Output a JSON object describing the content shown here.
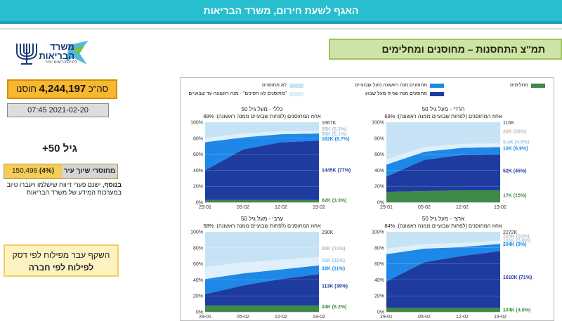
{
  "header": {
    "title": "האגף לשעת חירום, משרד הבריאות"
  },
  "logo": {
    "line1": "משרד",
    "line2": "הבריאות",
    "tagline": "לחיים בריאים יותר"
  },
  "sidebar": {
    "total_prefix": "סה\"כ",
    "total_value": "4,244,197",
    "total_suffix": "חוסנו",
    "datetime": "07:45 2021-02-20",
    "age_group": "גיל 50+",
    "unvaccinated_label": "מחוסרי שיוך עיר",
    "unvaccinated_value": "150,496",
    "unvaccinated_pct": "(4%)",
    "note_bold": "בנוסף,",
    "note_text": " ישנם פערי דיווח שישלמו ויעברו טיוב במערכות המידע של משרד הבריאות",
    "transition_line1": "השקף עבר מפילוח לפי דסק",
    "transition_line2": "לפילוח לפי חברה"
  },
  "section": {
    "title": "תמ\"צ התחסנות – מחוסנים ומחלימים"
  },
  "colors": {
    "dose2": "#1e3c9f",
    "dose1": "#1e88e8",
    "not_vaccinated": "#c6e3f5",
    "dose1_under_week": "#dfeffb",
    "recovered": "#3d8b46"
  },
  "legend": {
    "recovered": "מחלימים",
    "dose1": "מחוסנים מנה ראשונה מעל שבועיים",
    "not_vaccinated": "לא מחוסנים",
    "dose2": "מחוסנים מנה שנייה מעל שבוע",
    "dose1_recent": "\"מחוסנים לא חסינים\" - מנה ראשונה עד שבועיים"
  },
  "chart_data": [
    {
      "type": "area",
      "title": "חרדי - מעל גיל 50",
      "subtitle": "אחוז המחוסנים (לפחות שבועיים ממנה ראשונה): 69%",
      "x": [
        "29-01",
        "05-02",
        "12-02",
        "19-02"
      ],
      "ylim": [
        0,
        100
      ],
      "yticks": [
        "0%",
        "20%",
        "40%",
        "60%",
        "80%",
        "100%"
      ],
      "series": [
        {
          "name": "מחלימים",
          "values": [
            13,
            14,
            15,
            15
          ]
        },
        {
          "name": "מחוסנים מנה שנייה מעל שבוע",
          "values": [
            19,
            39,
            44,
            45
          ]
        },
        {
          "name": "מחוסנים מנה ראשונה מעל שבועיים",
          "values": [
            15,
            10,
            9,
            9
          ]
        },
        {
          "name": "\"מחוסנים לא חסינים\" - מנה ראשונה עד שבועיים",
          "values": [
            7,
            6,
            5,
            5
          ]
        }
      ],
      "labels": [
        {
          "text": "116K",
          "y": 100
        },
        {
          "text": "20K (28%)",
          "y": 89
        },
        {
          "text": "5.4K (4.5%)",
          "y": 76
        },
        {
          "text": "10K (8.9%)",
          "y": 68
        },
        {
          "text": "52K (45%)",
          "y": 40
        },
        {
          "text": "17K (15%)",
          "y": 9
        }
      ]
    },
    {
      "type": "area",
      "title": "כללי - מעל גיל 50",
      "subtitle": "אחוז המחוסנים (לפחות שבועיים ממנה ראשונה): 89%",
      "x": [
        "29-01",
        "05-02",
        "12-02",
        "19-02"
      ],
      "ylim": [
        0,
        100
      ],
      "yticks": [
        "0%",
        "20%",
        "40%",
        "60%",
        "80%",
        "100%"
      ],
      "series": [
        {
          "name": "מחלימים",
          "values": [
            3,
            3,
            3,
            3
          ]
        },
        {
          "name": "מחוסנים מנה שנייה מעל שבוע",
          "values": [
            37,
            63,
            72,
            74
          ]
        },
        {
          "name": "מחוסנים מנה ראשונה מעל שבועיים",
          "values": [
            35,
            15,
            10,
            9
          ]
        },
        {
          "name": "\"מחוסנים לא חסינים\" - מנה ראשונה עד שבועיים",
          "values": [
            5,
            5,
            4,
            3
          ]
        }
      ],
      "labels": [
        {
          "text": "1867K",
          "y": 100
        },
        {
          "text": "95K (5.3%)",
          "y": 92
        },
        {
          "text": "95K (5.1%)",
          "y": 86
        },
        {
          "text": "162K (8.7%)",
          "y": 80
        },
        {
          "text": "1445K (77%)",
          "y": 41
        },
        {
          "text": "62K (3.3%)",
          "y": 3
        }
      ]
    },
    {
      "type": "area",
      "title": "ארצי - מעל גיל 50",
      "subtitle": "אחוז המחוסנים (לפחות שבועיים ממנה ראשונה): 84%",
      "x": [
        "29-01",
        "05-02",
        "12-02",
        "19-02"
      ],
      "ylim": [
        0,
        100
      ],
      "yticks": [
        "0%",
        "20%",
        "40%",
        "60%",
        "80%",
        "100%"
      ],
      "series": [
        {
          "name": "מחלימים",
          "values": [
            5,
            5,
            5,
            5
          ]
        },
        {
          "name": "מחוסנים מנה שנייה מעל שבוע",
          "values": [
            33,
            57,
            65,
            71
          ]
        },
        {
          "name": "מחוסנים מנה ראשונה מעל שבועיים",
          "values": [
            34,
            17,
            11,
            9
          ]
        },
        {
          "name": "\"מחוסנים לא חסינים\" - מנה ראשונה עד שבועיים",
          "values": [
            7,
            6,
            5,
            4
          ]
        }
      ],
      "labels": [
        {
          "text": "2272K",
          "y": 100
        },
        {
          "text": "225K (10%)",
          "y": 95
        },
        {
          "text": "131K (5.8%)",
          "y": 90
        },
        {
          "text": "204K (9%)",
          "y": 85
        },
        {
          "text": "1610K (71%)",
          "y": 44
        },
        {
          "text": "104K (4.6%)",
          "y": 3
        }
      ]
    },
    {
      "type": "area",
      "title": "ערבי - מעל גיל 50",
      "subtitle": "אחוז המחוסנים (לפחות שבועיים ממנה ראשונה): 58%",
      "x": [
        "29-01",
        "05-02",
        "12-02",
        "19-02"
      ],
      "ylim": [
        0,
        100
      ],
      "yticks": [
        "0%",
        "20%",
        "40%",
        "60%",
        "80%",
        "100%"
      ],
      "series": [
        {
          "name": "מחלימים",
          "values": [
            8,
            8,
            8,
            8
          ]
        },
        {
          "name": "מחוסנים מנה שנייה מעל שבוע",
          "values": [
            14,
            25,
            33,
            39
          ]
        },
        {
          "name": "מחוסנים מנה ראשונה מעל שבועיים",
          "values": [
            19,
            15,
            12,
            11
          ]
        },
        {
          "name": "\"מחוסנים לא חסינים\" - מנה ראשונה עד שבועיים",
          "values": [
            15,
            14,
            12,
            11
          ]
        }
      ],
      "labels": [
        {
          "text": "290K",
          "y": 100
        },
        {
          "text": "90K (31%)",
          "y": 80
        },
        {
          "text": "31K (11%)",
          "y": 65
        },
        {
          "text": "32K (11%)",
          "y": 55
        },
        {
          "text": "113K (39%)",
          "y": 33
        },
        {
          "text": "24K (8.2%)",
          "y": 7
        }
      ]
    }
  ]
}
